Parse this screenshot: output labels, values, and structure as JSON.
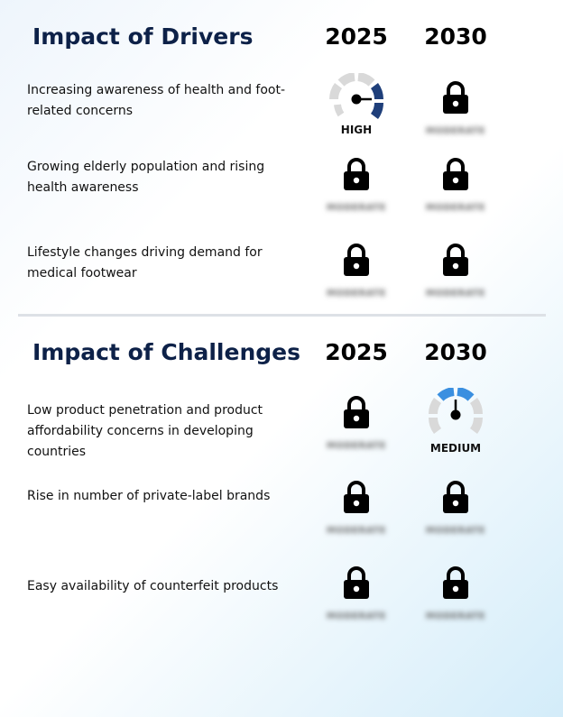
{
  "drivers": {
    "title": "Impact of Drivers",
    "years": [
      "2025",
      "2030"
    ],
    "rows": [
      {
        "label": "Increasing awareness of health and foot-related concerns",
        "cells": [
          {
            "type": "gauge",
            "level": "HIGH"
          },
          {
            "type": "locked",
            "hidden": "MODERATE"
          }
        ]
      },
      {
        "label": "Growing elderly population and rising health awareness",
        "cells": [
          {
            "type": "locked",
            "hidden": "MODERATE"
          },
          {
            "type": "locked",
            "hidden": "MODERATE"
          }
        ]
      },
      {
        "label": "Lifestyle changes driving demand for medical footwear",
        "cells": [
          {
            "type": "locked",
            "hidden": "MODERATE"
          },
          {
            "type": "locked",
            "hidden": "MODERATE"
          }
        ]
      }
    ]
  },
  "challenges": {
    "title": "Impact of Challenges",
    "years": [
      "2025",
      "2030"
    ],
    "rows": [
      {
        "label": "Low product penetration and product affordability concerns in developing countries",
        "cells": [
          {
            "type": "locked",
            "hidden": "MODERATE"
          },
          {
            "type": "gauge",
            "level": "MEDIUM"
          }
        ]
      },
      {
        "label": "Rise in number of private-label brands",
        "cells": [
          {
            "type": "locked",
            "hidden": "MODERATE"
          },
          {
            "type": "locked",
            "hidden": "MODERATE"
          }
        ]
      },
      {
        "label": "Easy availability of counterfeit products",
        "cells": [
          {
            "type": "locked",
            "hidden": "MODERATE"
          },
          {
            "type": "locked",
            "hidden": "MODERATE"
          }
        ]
      }
    ]
  },
  "colors": {
    "title": "#0d2148",
    "high": "#1f3f7a",
    "medium": "#3a8fe0",
    "gauge_track": "#d9d9d9"
  },
  "icons": {
    "lock": "lock-icon",
    "gauge": "gauge-icon"
  }
}
